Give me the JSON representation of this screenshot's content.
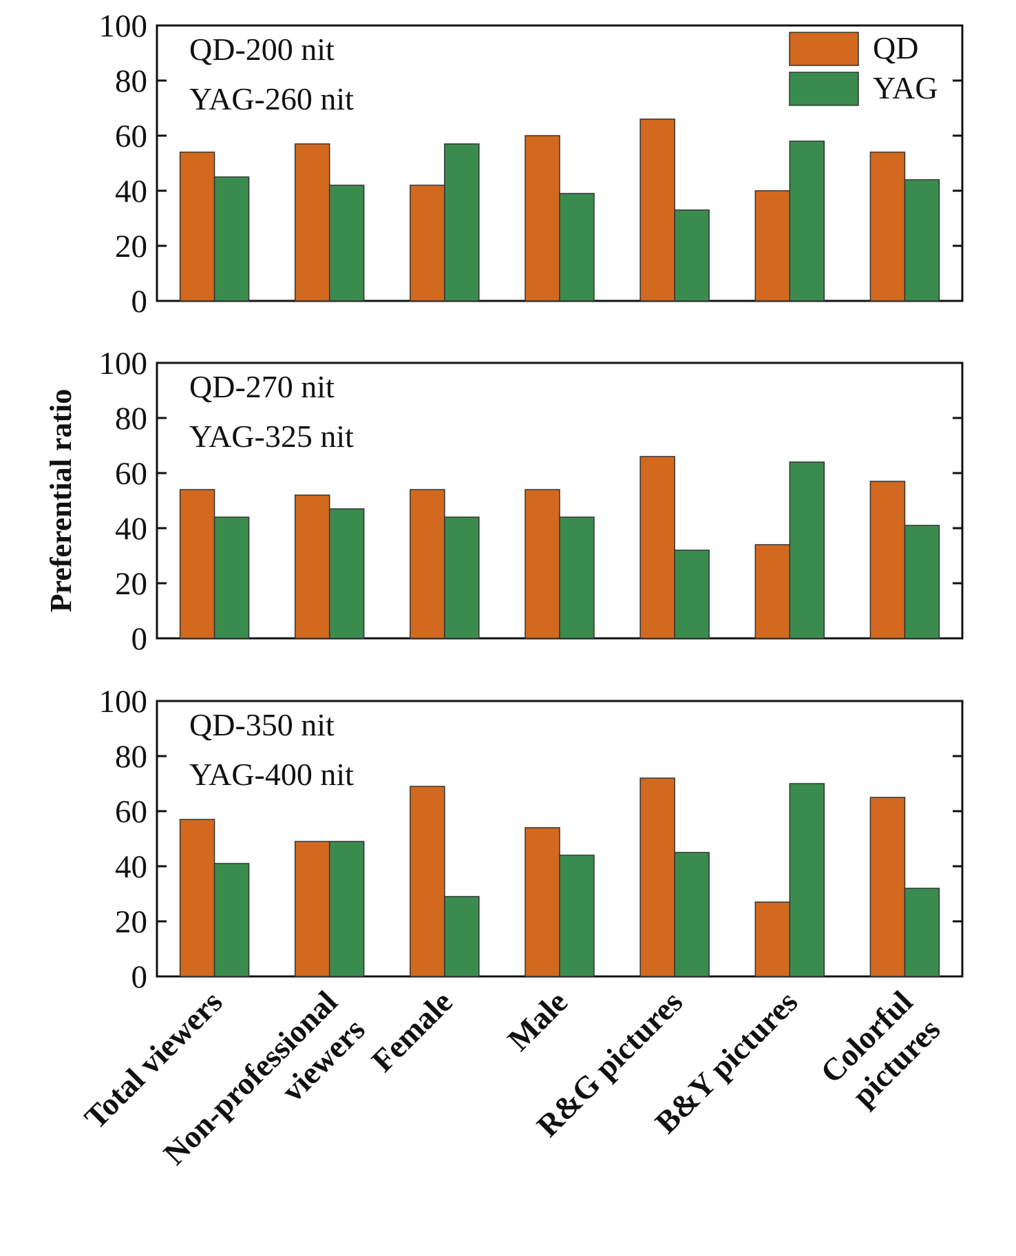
{
  "chart_data": {
    "type": "bar",
    "ylabel": "Preferential ratio",
    "ylim": [
      0,
      100
    ],
    "yticks": [
      0,
      20,
      40,
      60,
      80,
      100
    ],
    "legend_position": "top-right",
    "categories": [
      [
        "Total viewers"
      ],
      [
        "Non-professional",
        "viewers"
      ],
      [
        "Female"
      ],
      [
        "Male"
      ],
      [
        "R&G pictures"
      ],
      [
        "B&Y pictures"
      ],
      [
        "Colorful",
        "pictures"
      ]
    ],
    "colors": {
      "QD": "#d2691e",
      "YAG": "#3a8c4e"
    },
    "panels": [
      {
        "labels": [
          "QD-200 nit",
          "YAG-260 nit"
        ],
        "series": [
          {
            "name": "QD",
            "values": [
              54,
              57,
              42,
              60,
              66,
              40,
              54
            ]
          },
          {
            "name": "YAG",
            "values": [
              45,
              42,
              57,
              39,
              33,
              58,
              44
            ]
          }
        ]
      },
      {
        "labels": [
          "QD-270 nit",
          "YAG-325 nit"
        ],
        "series": [
          {
            "name": "QD",
            "values": [
              54,
              52,
              54,
              54,
              66,
              34,
              57
            ]
          },
          {
            "name": "YAG",
            "values": [
              44,
              47,
              44,
              44,
              32,
              64,
              41
            ]
          }
        ]
      },
      {
        "labels": [
          "QD-350 nit",
          "YAG-400 nit"
        ],
        "series": [
          {
            "name": "QD",
            "values": [
              57,
              49,
              69,
              54,
              72,
              27,
              65
            ]
          },
          {
            "name": "YAG",
            "values": [
              41,
              49,
              29,
              44,
              45,
              70,
              32
            ]
          }
        ]
      }
    ]
  }
}
